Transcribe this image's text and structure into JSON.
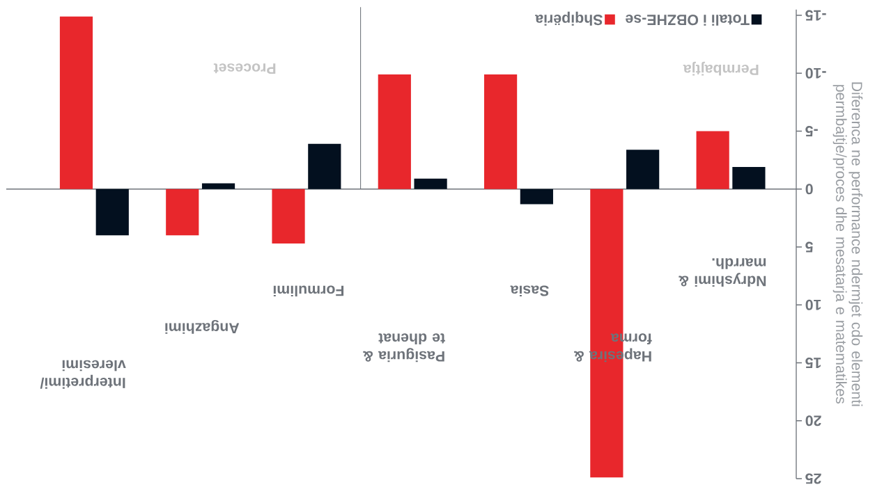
{
  "chart_data": {
    "type": "bar",
    "ylabel": "Diferenca ne performance ndermjet cdo elementi permbajtje/proces dhe mesatarja e matematikes",
    "categories": [
      "Interpretimi/ vleresimi",
      "Angazhimi",
      "Formulimi",
      "Pasiguria & te dhenat",
      "Sasia",
      "Hapesira & forma",
      "Ndryshimi & marrdh."
    ],
    "series": [
      {
        "name": "Shqipëria",
        "color": "#e8272c",
        "values": [
          -14.9,
          4.0,
          4.7,
          -9.9,
          -9.9,
          24.9,
          -5.0
        ]
      },
      {
        "name": "Totali i OBZHE-se",
        "color": "#03101f",
        "values": [
          4.0,
          -0.5,
          -3.9,
          -0.9,
          1.3,
          -3.4,
          -1.9
        ]
      }
    ],
    "ylim": [
      25,
      -15.5
    ],
    "yticks": [
      -15,
      -10,
      -5,
      0,
      5,
      10,
      15,
      20,
      25
    ],
    "legend": "top right",
    "annotations": [
      "Proceset",
      "Permbajtja"
    ]
  }
}
